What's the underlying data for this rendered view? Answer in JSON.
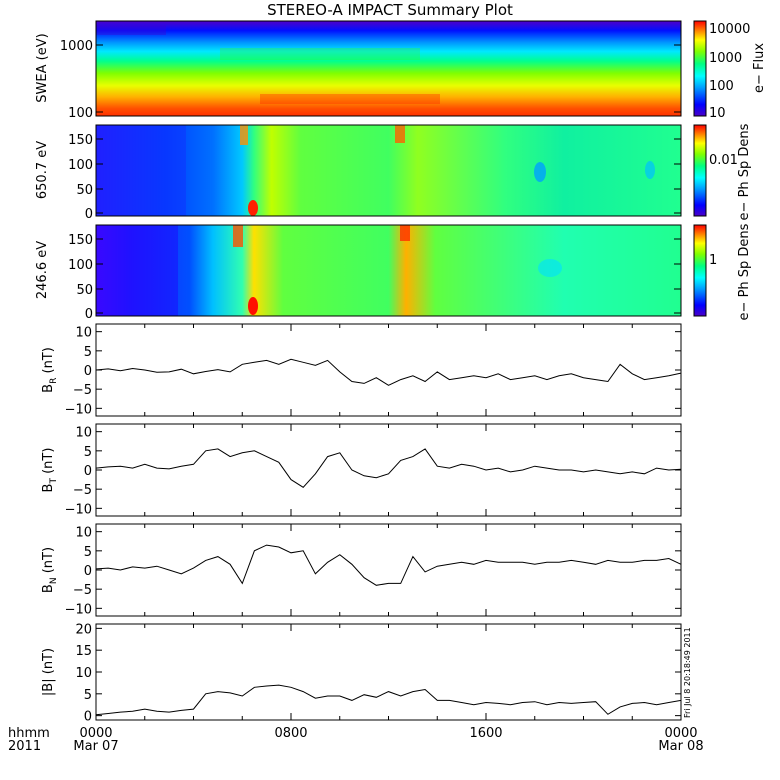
{
  "title": "STEREO-A IMPACT Summary Plot",
  "colors": {
    "rainbow": [
      "#4b00c8",
      "#0000ff",
      "#00a0ff",
      "#00ffff",
      "#00ff80",
      "#80ff00",
      "#ffff00",
      "#ff8000",
      "#ff0000"
    ],
    "line": "#000000"
  },
  "xaxis": {
    "ticks": [
      "0000",
      "0800",
      "1600",
      "0000"
    ],
    "dates": [
      "Mar 07",
      "",
      "",
      "Mar 08"
    ],
    "corner_label": "hhmm",
    "corner_year": "2011",
    "range_hours": [
      0,
      24
    ]
  },
  "timestamp": "Fri Jul 8 20:18:49 2011",
  "chart_data": [
    {
      "type": "heatmap",
      "ylabel": "SWEA (eV)",
      "yscale": "log",
      "ylim": [
        90,
        2000
      ],
      "yticks": [
        "1000",
        "100"
      ],
      "colorbar_label": "e− Flux",
      "colorbar_ticks": [
        "10000",
        "1000",
        "100",
        "10"
      ],
      "colorbar_scale": "log",
      "colorbar_range": [
        10,
        10000
      ]
    },
    {
      "type": "heatmap",
      "ylabel": "650.7 eV",
      "ylim": [
        0,
        180
      ],
      "yticks": [
        "150",
        "100",
        "50",
        "0"
      ],
      "colorbar_label": "e− Ph Sp Dens",
      "colorbar_ticks": [
        "0.01"
      ],
      "colorbar_scale": "log"
    },
    {
      "type": "heatmap",
      "ylabel": "246.6 eV",
      "ylim": [
        0,
        180
      ],
      "yticks": [
        "150",
        "100",
        "50",
        "0"
      ],
      "colorbar_label": "e− Ph Sp Dens",
      "colorbar_ticks": [
        "1"
      ],
      "colorbar_scale": "log"
    },
    {
      "type": "line",
      "ylabel": "B_R (nT)",
      "ylabel_main": "B",
      "ylabel_sub": "R",
      "ylabel_unit": "(nT)",
      "ylim": [
        -12,
        12
      ],
      "yticks": [
        "10",
        "5",
        "0",
        "−5",
        "−10"
      ],
      "x": [
        0,
        0.5,
        1,
        1.5,
        2,
        2.5,
        3,
        3.5,
        4,
        4.5,
        5,
        5.5,
        6,
        6.5,
        7,
        7.5,
        8,
        8.5,
        9,
        9.5,
        10,
        10.5,
        11,
        11.5,
        12,
        12.5,
        13,
        13.5,
        14,
        14.5,
        15,
        15.5,
        16,
        16.5,
        17,
        17.5,
        18,
        18.5,
        19,
        19.5,
        20,
        20.5,
        21,
        21.5,
        22,
        22.5,
        23,
        23.5,
        24
      ],
      "y": [
        0,
        0.3,
        -0.2,
        0.4,
        0,
        -0.6,
        -0.5,
        0.2,
        -1,
        -0.4,
        0.1,
        -0.5,
        1.5,
        2,
        2.5,
        1.5,
        2.8,
        2,
        1.2,
        2.5,
        -0.5,
        -3,
        -3.5,
        -2,
        -4,
        -2.5,
        -1.5,
        -3,
        -0.5,
        -2.5,
        -2,
        -1.5,
        -2,
        -1,
        -2.5,
        -2,
        -1.5,
        -2.5,
        -1.5,
        -1,
        -2,
        -2.5,
        -3,
        1.5,
        -1,
        -2.5,
        -2,
        -1.5,
        -0.8
      ]
    },
    {
      "type": "line",
      "ylabel": "B_T (nT)",
      "ylabel_main": "B",
      "ylabel_sub": "T",
      "ylabel_unit": "(nT)",
      "ylim": [
        -12,
        12
      ],
      "yticks": [
        "10",
        "5",
        "0",
        "−5",
        "−10"
      ],
      "x": [
        0,
        0.5,
        1,
        1.5,
        2,
        2.5,
        3,
        3.5,
        4,
        4.5,
        5,
        5.5,
        6,
        6.5,
        7,
        7.5,
        8,
        8.5,
        9,
        9.5,
        10,
        10.5,
        11,
        11.5,
        12,
        12.5,
        13,
        13.5,
        14,
        14.5,
        15,
        15.5,
        16,
        16.5,
        17,
        17.5,
        18,
        18.5,
        19,
        19.5,
        20,
        20.5,
        21,
        21.5,
        22,
        22.5,
        23,
        23.5,
        24
      ],
      "y": [
        0.5,
        0.8,
        1,
        0.5,
        1.5,
        0.5,
        0.3,
        1,
        1.5,
        5,
        5.5,
        3.5,
        4.5,
        5,
        3.5,
        2,
        -2.5,
        -4.5,
        -1,
        3.5,
        4.5,
        0,
        -1.5,
        -2,
        -1,
        2.5,
        3.5,
        5.5,
        1,
        0.5,
        1.5,
        1,
        0,
        0.5,
        -0.5,
        0,
        1,
        0.5,
        0,
        0,
        -0.5,
        0,
        -0.5,
        -1,
        -0.5,
        -1,
        0.5,
        0,
        0.2
      ]
    },
    {
      "type": "line",
      "ylabel": "B_N (nT)",
      "ylabel_main": "B",
      "ylabel_sub": "N",
      "ylabel_unit": "(nT)",
      "ylim": [
        -12,
        12
      ],
      "yticks": [
        "10",
        "5",
        "0",
        "−5",
        "−10"
      ],
      "x": [
        0,
        0.5,
        1,
        1.5,
        2,
        2.5,
        3,
        3.5,
        4,
        4.5,
        5,
        5.5,
        6,
        6.5,
        7,
        7.5,
        8,
        8.5,
        9,
        9.5,
        10,
        10.5,
        11,
        11.5,
        12,
        12.5,
        13,
        13.5,
        14,
        14.5,
        15,
        15.5,
        16,
        16.5,
        17,
        17.5,
        18,
        18.5,
        19,
        19.5,
        20,
        20.5,
        21,
        21.5,
        22,
        22.5,
        23,
        23.5,
        24
      ],
      "y": [
        0.3,
        0.5,
        0,
        0.8,
        0.5,
        1,
        0,
        -1,
        0.5,
        2.5,
        3.5,
        1.5,
        -3.5,
        5,
        6.5,
        6,
        4.5,
        5,
        -1,
        2,
        4,
        1.5,
        -2,
        -4,
        -3.5,
        -3.5,
        3.5,
        -0.5,
        1,
        1.5,
        2,
        1.5,
        2.5,
        2,
        2,
        2,
        1.5,
        2,
        2,
        2.5,
        2,
        1.5,
        2.5,
        2,
        2,
        2.5,
        2.5,
        3,
        1.5
      ]
    },
    {
      "type": "line",
      "ylabel": "|B| (nT)",
      "ylabel_main": "|B|",
      "ylabel_sub": "",
      "ylabel_unit": "(nT)",
      "ylim": [
        -1,
        21
      ],
      "yticks": [
        "20",
        "15",
        "10",
        "5",
        "0"
      ],
      "x": [
        0,
        0.5,
        1,
        1.5,
        2,
        2.5,
        3,
        3.5,
        4,
        4.5,
        5,
        5.5,
        6,
        6.5,
        7,
        7.5,
        8,
        8.5,
        9,
        9.5,
        10,
        10.5,
        11,
        11.5,
        12,
        12.5,
        13,
        13.5,
        14,
        14.5,
        15,
        15.5,
        16,
        16.5,
        17,
        17.5,
        18,
        18.5,
        19,
        19.5,
        20,
        20.5,
        21,
        21.5,
        22,
        22.5,
        23,
        23.5,
        24
      ],
      "y": [
        0.2,
        0.5,
        0.8,
        1,
        1.5,
        1,
        0.8,
        1.2,
        1.5,
        5,
        5.5,
        5.2,
        4.5,
        6.5,
        6.8,
        7,
        6.5,
        5.5,
        4,
        4.5,
        4.5,
        3.5,
        4.8,
        4.2,
        5.5,
        4.5,
        5.5,
        6,
        3.5,
        3.5,
        3,
        2.5,
        3,
        2.8,
        2.5,
        3,
        3.2,
        2.5,
        3,
        2.8,
        3,
        3.2,
        0.3,
        2,
        2.8,
        3,
        2.5,
        3,
        3.5
      ]
    }
  ]
}
